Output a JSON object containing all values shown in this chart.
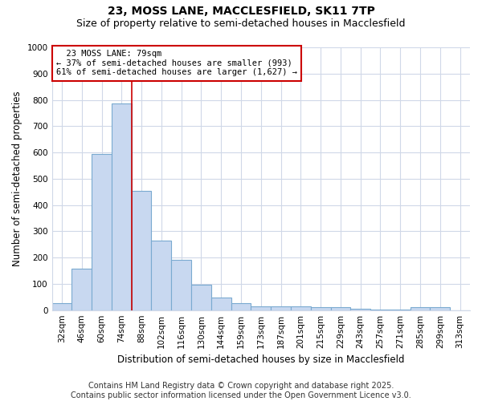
{
  "title1": "23, MOSS LANE, MACCLESFIELD, SK11 7TP",
  "title2": "Size of property relative to semi-detached houses in Macclesfield",
  "xlabel": "Distribution of semi-detached houses by size in Macclesfield",
  "ylabel": "Number of semi-detached properties",
  "categories": [
    "32sqm",
    "46sqm",
    "60sqm",
    "74sqm",
    "88sqm",
    "102sqm",
    "116sqm",
    "130sqm",
    "144sqm",
    "159sqm",
    "173sqm",
    "187sqm",
    "201sqm",
    "215sqm",
    "229sqm",
    "243sqm",
    "257sqm",
    "271sqm",
    "285sqm",
    "299sqm",
    "313sqm"
  ],
  "values": [
    25,
    157,
    595,
    785,
    453,
    265,
    190,
    98,
    47,
    28,
    15,
    13,
    13,
    12,
    10,
    5,
    3,
    3,
    10,
    10,
    0
  ],
  "bar_color": "#c8d8f0",
  "bar_edge_color": "#7aaad0",
  "property_label": "23 MOSS LANE: 79sqm",
  "pct_smaller": 37,
  "pct_larger": 61,
  "n_smaller": 993,
  "n_larger": 1627,
  "vline_color": "#cc0000",
  "annotation_box_color": "#cc0000",
  "ylim": [
    0,
    1000
  ],
  "yticks": [
    0,
    100,
    200,
    300,
    400,
    500,
    600,
    700,
    800,
    900,
    1000
  ],
  "bg_color": "#ffffff",
  "grid_color": "#d0d8e8",
  "footer": "Contains HM Land Registry data © Crown copyright and database right 2025.\nContains public sector information licensed under the Open Government Licence v3.0.",
  "title1_fontsize": 10,
  "title2_fontsize": 9,
  "xlabel_fontsize": 8.5,
  "ylabel_fontsize": 8.5,
  "tick_fontsize": 7.5,
  "footer_fontsize": 7,
  "ann_fontsize": 7.5
}
